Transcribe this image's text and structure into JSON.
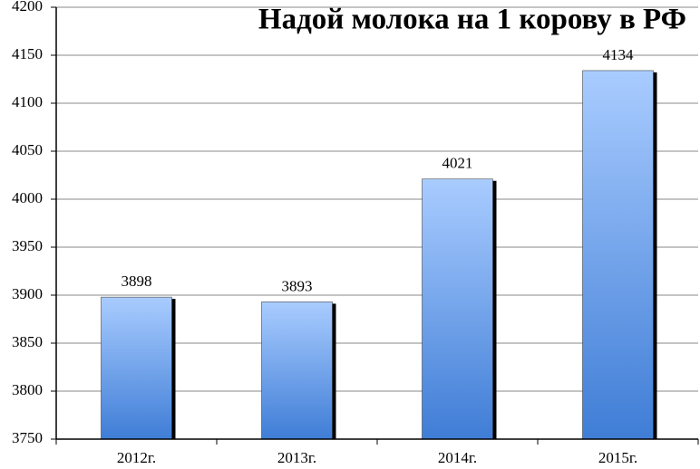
{
  "chart_data": {
    "type": "bar",
    "title": "Надой молока на 1 корову в РФ",
    "categories": [
      "2012г.",
      "2013г.",
      "2014г.",
      "2015г."
    ],
    "values": [
      3898,
      3893,
      4021,
      4134
    ],
    "color": "#3f7dd6",
    "ylim": [
      3750,
      4200
    ],
    "yticks": [
      3750,
      3800,
      3850,
      3900,
      3950,
      4000,
      4050,
      4100,
      4150,
      4200
    ],
    "grid": true
  }
}
